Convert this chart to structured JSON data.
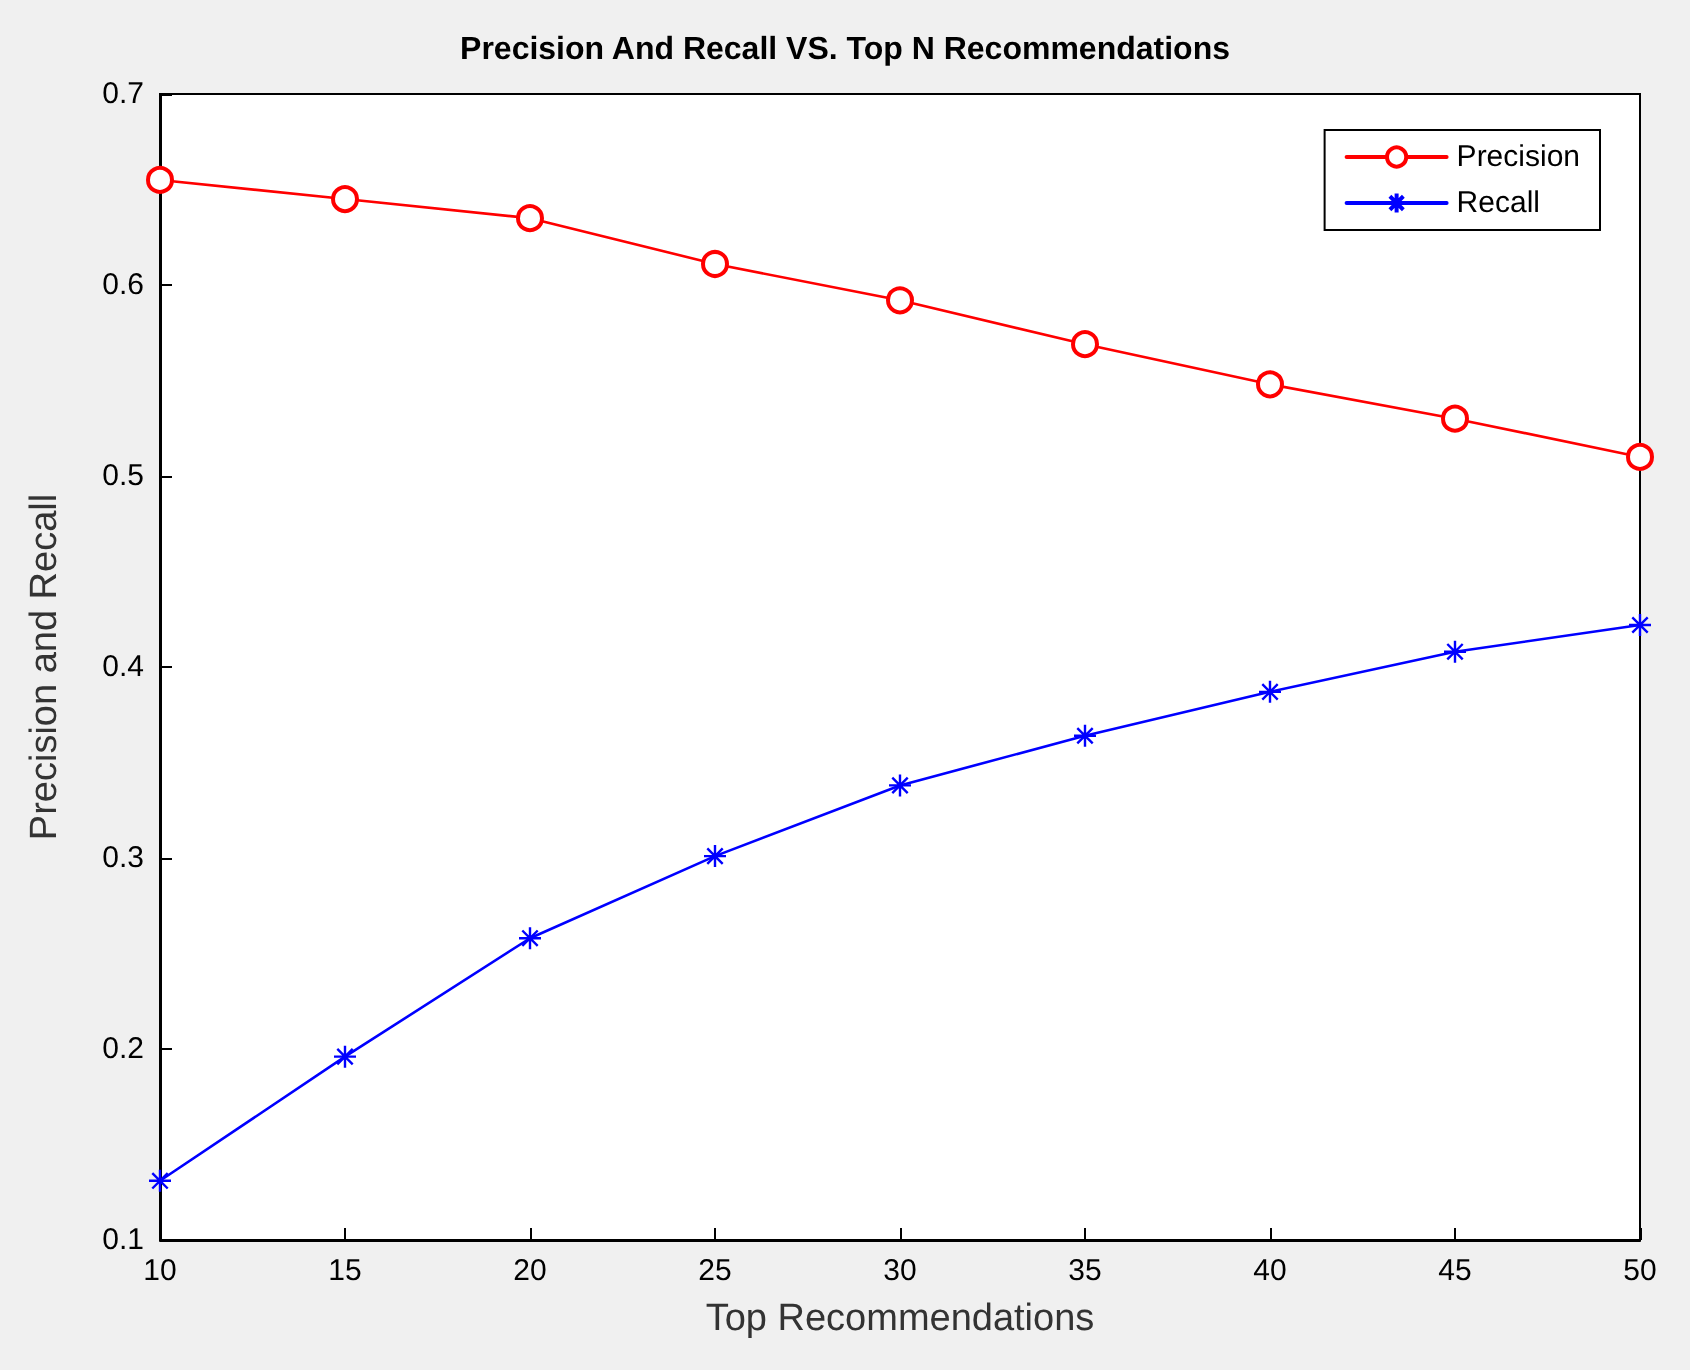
{
  "chart_data": {
    "type": "line",
    "title": "Precision And Recall VS. Top N Recommendations",
    "xlabel": "Top Recommendations",
    "ylabel": "Precision and Recall",
    "x": [
      10,
      15,
      20,
      25,
      30,
      35,
      40,
      45,
      50
    ],
    "series": [
      {
        "name": "Precision",
        "color": "#ff0000",
        "marker": "circle",
        "values": [
          0.655,
          0.645,
          0.635,
          0.611,
          0.592,
          0.569,
          0.548,
          0.53,
          0.51
        ]
      },
      {
        "name": "Recall",
        "color": "#0000ff",
        "marker": "cross",
        "values": [
          0.131,
          0.196,
          0.258,
          0.301,
          0.338,
          0.364,
          0.387,
          0.408,
          0.422
        ]
      }
    ],
    "xlim": [
      10,
      50
    ],
    "xticks": [
      10,
      15,
      20,
      25,
      30,
      35,
      40,
      45,
      50
    ],
    "ylim": [
      0.1,
      0.7
    ],
    "yticks": [
      0.1,
      0.2,
      0.3,
      0.4,
      0.5,
      0.6,
      0.7
    ],
    "grid": false,
    "legend": "top right",
    "line_style": "solid"
  }
}
